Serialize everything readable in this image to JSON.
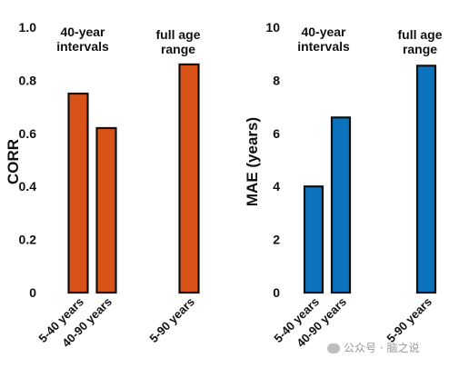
{
  "chart_data": [
    {
      "type": "bar",
      "categories": [
        "5-40 years",
        "40-90 years",
        "5-90 years"
      ],
      "values": [
        0.75,
        0.62,
        0.86
      ],
      "color": "#d95319",
      "ylabel": "CORR",
      "ylim": [
        0,
        1.0
      ],
      "yticks": [
        "0",
        "0.2",
        "0.4",
        "0.6",
        "0.8",
        "1.0"
      ],
      "annotations": [
        "40-year intervals",
        "full age range"
      ],
      "grid": false
    },
    {
      "type": "bar",
      "categories": [
        "5-40 years",
        "40-90 years",
        "5-90 years"
      ],
      "values": [
        4.0,
        6.6,
        8.55
      ],
      "color": "#0b72bd",
      "ylabel": "MAE (years)",
      "ylim": [
        0,
        10
      ],
      "yticks": [
        "0",
        "2",
        "4",
        "6",
        "8",
        "10"
      ],
      "annotations": [
        "40-year intervals",
        "full age range"
      ],
      "grid": false
    }
  ],
  "watermark": {
    "text": "公众号 · 脑之说"
  }
}
